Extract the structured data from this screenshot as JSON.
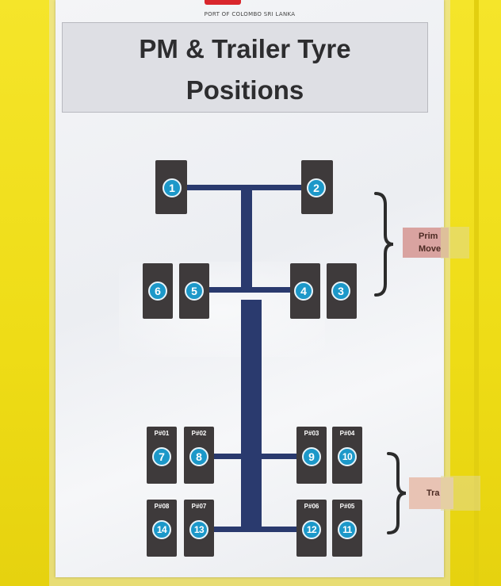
{
  "header": {
    "org": "PORT OF COLOMBO SRI LANKA",
    "title_line1": "PM & Trailer Tyre",
    "title_line2": "Positions"
  },
  "tyres": [
    "1",
    "2",
    "3",
    "4",
    "5",
    "6",
    "7",
    "8",
    "9",
    "10",
    "11",
    "12",
    "13",
    "14"
  ],
  "trailer_tags": [
    "P#01",
    "P#02",
    "P#03",
    "P#04",
    "P#05",
    "P#06",
    "P#07",
    "P#08"
  ],
  "labels": {
    "prime_mover_line1": "Prim",
    "prime_mover_line2": "Move",
    "trailer": "Tra"
  },
  "colors": {
    "wall": "#f2e21a",
    "chassis": "#2a3a6e",
    "tyre": "#3e3a3b",
    "badge": "#1c98c9",
    "prime_mover_label": "#d9a3a0",
    "trailer_label": "#e8c3b4"
  }
}
